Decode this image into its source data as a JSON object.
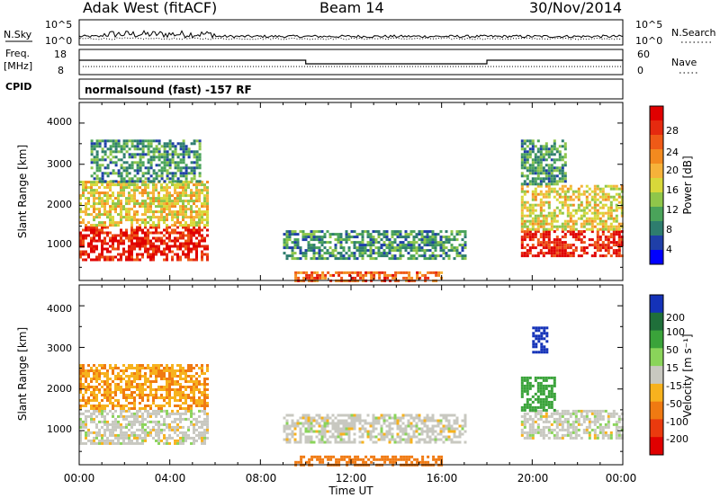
{
  "header": {
    "title_left": "Adak West (fitACF)",
    "title_center": "Beam 14",
    "title_right": "30/Nov/2014"
  },
  "noise_panel": {
    "left_label": "N.Sky",
    "left_ticks": [
      "10^5",
      "10^0"
    ],
    "right_ticks": [
      "10^5",
      "10^0"
    ],
    "right_label": "N.Search"
  },
  "freq_panel": {
    "left_label_top": "Freq.",
    "left_label_unit": "[MHz]",
    "left_ticks": [
      "18",
      "8"
    ],
    "right_ticks": [
      "60",
      "0"
    ],
    "right_label": "Nave"
  },
  "cpid_panel": {
    "label": "CPID",
    "text": "normalsound (fast) -157 RF"
  },
  "power_panel": {
    "ylabel": "Slant Range [km]",
    "yticks": [
      "4000",
      "3000",
      "2000",
      "1000"
    ],
    "colorbar_label": "Power [dB]",
    "colorbar_ticks": [
      "28",
      "24",
      "20",
      "16",
      "12",
      "8",
      "4"
    ],
    "colors": [
      "#0000ff",
      "#1f3fa8",
      "#2e7d6e",
      "#4aa35a",
      "#8fc64a",
      "#d8d83a",
      "#f6b23a",
      "#f38a1f",
      "#ef5a17",
      "#e52a0f",
      "#e00000"
    ]
  },
  "velocity_panel": {
    "ylabel": "Slant Range [km]",
    "yticks": [
      "4000",
      "3000",
      "2000",
      "1000"
    ],
    "colorbar_label": "Velocity [m s⁻¹]",
    "colorbar_ticks": [
      "200",
      "100",
      "50",
      "15",
      "-15",
      "-50",
      "-100",
      "-200"
    ],
    "colors": [
      "#1432b8",
      "#1f6f3a",
      "#3aa33a",
      "#8ad45a",
      "#c8c8c0",
      "#f7b21e",
      "#f07a12",
      "#ea3a0e",
      "#e00000"
    ]
  },
  "xaxis": {
    "ticks": [
      "00:00",
      "04:00",
      "08:00",
      "12:00",
      "16:00",
      "20:00",
      "00:00"
    ],
    "label": "Time UT"
  },
  "chart_data": {
    "type": "heatmap",
    "title": "Adak West (fitACF)   Beam 14   30/Nov/2014",
    "xlabel": "Time UT",
    "ylabel": "Slant Range [km]",
    "xlim": [
      "00:00",
      "24:00"
    ],
    "ylim": [
      180,
      4500
    ],
    "grid": false,
    "series": [
      {
        "name": "Power [dB]",
        "clim": [
          0,
          30
        ],
        "regions": [
          {
            "t_start": "00:00",
            "t_end": "05:40",
            "range_km": [
              700,
              1500
            ],
            "level": 28
          },
          {
            "t_start": "00:00",
            "t_end": "05:40",
            "range_km": [
              1500,
              2600
            ],
            "level": 16
          },
          {
            "t_start": "00:30",
            "t_end": "05:20",
            "range_km": [
              2600,
              3600
            ],
            "level": 8
          },
          {
            "t_start": "09:00",
            "t_end": "17:00",
            "range_km": [
              700,
              1400
            ],
            "level": 8
          },
          {
            "t_start": "09:30",
            "t_end": "16:00",
            "range_km": [
              180,
              400
            ],
            "level": 24
          },
          {
            "t_start": "19:30",
            "t_end": "24:00",
            "range_km": [
              800,
              1400
            ],
            "level": 28
          },
          {
            "t_start": "19:30",
            "t_end": "24:00",
            "range_km": [
              1400,
              2500
            ],
            "level": 16
          },
          {
            "t_start": "19:30",
            "t_end": "21:30",
            "range_km": [
              2500,
              3600
            ],
            "level": 8
          }
        ]
      },
      {
        "name": "Velocity [m s⁻¹]",
        "clim": [
          -200,
          200
        ],
        "regions": [
          {
            "t_start": "00:00",
            "t_end": "05:40",
            "range_km": [
              700,
              1500
            ],
            "level": 0
          },
          {
            "t_start": "00:00",
            "t_end": "05:40",
            "range_km": [
              1500,
              2600
            ],
            "level": -30
          },
          {
            "t_start": "09:00",
            "t_end": "17:00",
            "range_km": [
              700,
              1400
            ],
            "level": 0
          },
          {
            "t_start": "09:30",
            "t_end": "16:00",
            "range_km": [
              180,
              400
            ],
            "level": -50
          },
          {
            "t_start": "19:30",
            "t_end": "24:00",
            "range_km": [
              800,
              1500
            ],
            "level": 0
          },
          {
            "t_start": "19:30",
            "t_end": "21:00",
            "range_km": [
              1500,
              2300
            ],
            "level": 50
          },
          {
            "t_start": "20:00",
            "t_end": "20:40",
            "range_km": [
              2900,
              3500
            ],
            "level": 200
          }
        ]
      }
    ],
    "frequency_MHz": {
      "segments": [
        {
          "t_start": "00:00",
          "t_end": "10:00",
          "value": 14
        },
        {
          "t_start": "10:00",
          "t_end": "18:00",
          "value": 12
        },
        {
          "t_start": "18:00",
          "t_end": "24:00",
          "value": 14
        }
      ]
    }
  }
}
